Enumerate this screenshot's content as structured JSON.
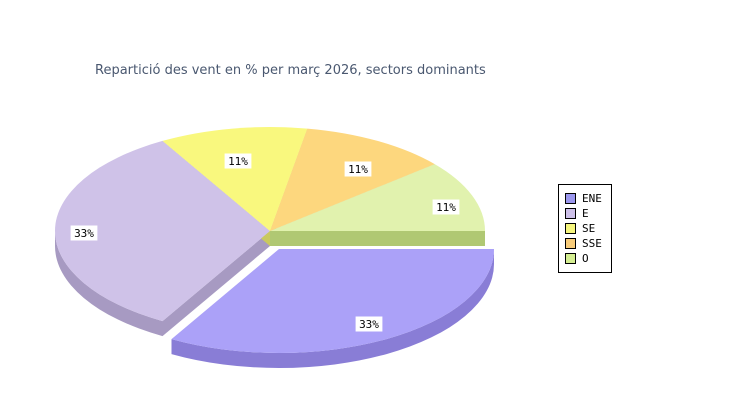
{
  "chart_data": {
    "type": "pie",
    "title": "Repartició des vent en % per març 2026, sectors dominants",
    "unit": "%",
    "effect_3d": true,
    "legend_position": "right",
    "slices": [
      {
        "label": "ENE",
        "value": 33,
        "pct_label": "33%",
        "color": "#9b97ee",
        "top_color": "#aba1f8",
        "side_color": "#897dd6",
        "exploded": true
      },
      {
        "label": "E",
        "value": 33,
        "pct_label": "33%",
        "color": "#cdc0e9",
        "top_color": "#cfc2e8",
        "side_color": "#a79ac2",
        "exploded": false
      },
      {
        "label": "SE",
        "value": 11,
        "pct_label": "11%",
        "color": "#f6f67d",
        "top_color": "#f9f87e",
        "side_color": "#c9c95e",
        "exploded": false
      },
      {
        "label": "SSE",
        "value": 11,
        "pct_label": "11%",
        "color": "#f8cc7a",
        "top_color": "#fdd77e",
        "side_color": "#d2a957",
        "exploded": false
      },
      {
        "label": "O",
        "value": 11,
        "pct_label": "11%",
        "color": "#d4ee91",
        "top_color": "#e1f2ae",
        "side_color": "#b0c873",
        "exploded": false
      }
    ]
  }
}
